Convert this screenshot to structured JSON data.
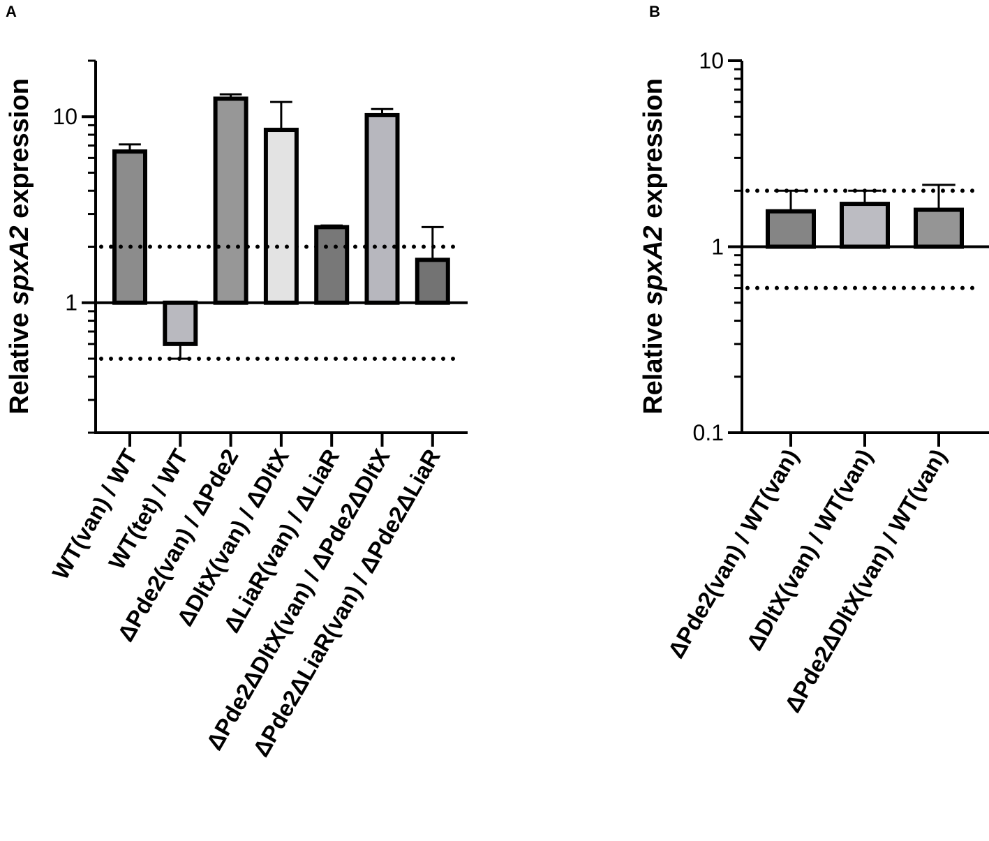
{
  "chart_data": [
    {
      "panel": "A",
      "type": "bar",
      "yscale": "log",
      "ylim": [
        0.2,
        20
      ],
      "ylabel": "Relative spxA2 expression",
      "ylabel_parts": [
        "Relative ",
        "spxA2",
        " expression"
      ],
      "yticks": [
        {
          "value": 1,
          "label": "1"
        },
        {
          "value": 10,
          "label": "10"
        }
      ],
      "baseline": 1,
      "thresholds": [
        2,
        0.5
      ],
      "categories": [
        "WT(van) / WT",
        "WT(tet) / WT",
        "ΔPde2(van) / ΔPde2",
        "ΔDltX(van) / ΔDltX",
        "ΔLiaR(van) / ΔLiaR",
        "ΔPde2ΔDltX(van) / ΔPde2ΔDltX",
        "ΔPde2ΔLiaR(van) / ΔPde2ΔLiaR"
      ],
      "values": [
        6.5,
        0.6,
        12.5,
        8.5,
        2.55,
        10.2,
        1.7
      ],
      "error_upper": [
        7.1,
        0.5,
        13.2,
        12.0,
        2.6,
        11.0,
        2.55
      ],
      "colors": [
        "#8c8c8c",
        "#b9b9bf",
        "#979797",
        "#e3e3e3",
        "#787878",
        "#b7b7be",
        "#737373"
      ]
    },
    {
      "panel": "B",
      "type": "bar",
      "yscale": "log",
      "ylim": [
        0.1,
        10
      ],
      "ylabel": "Relative spxA2 expression",
      "ylabel_parts": [
        "Relative ",
        "spxA2",
        " expression"
      ],
      "yticks": [
        {
          "value": 0.1,
          "label": "0.1"
        },
        {
          "value": 1,
          "label": "1"
        },
        {
          "value": 10,
          "label": "10"
        }
      ],
      "baseline": 1,
      "thresholds": [
        2,
        0.6
      ],
      "categories": [
        "ΔPde2(van) / WT(van)",
        "ΔDltX(van) / WT(van)",
        "ΔPde2ΔDltX(van) / WT(van)"
      ],
      "values": [
        1.55,
        1.7,
        1.58
      ],
      "error_upper": [
        2.0,
        2.0,
        2.15
      ],
      "colors": [
        "#858585",
        "#bcbcc2",
        "#959595"
      ]
    }
  ]
}
